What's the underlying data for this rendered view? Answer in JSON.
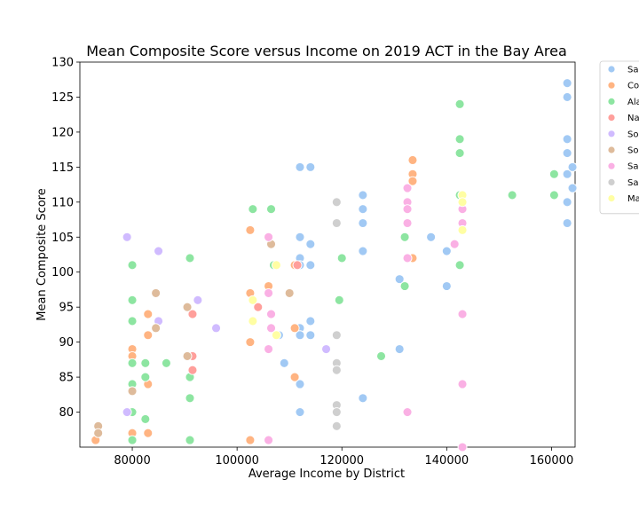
{
  "chart_data": {
    "type": "scatter",
    "title": "Mean Composite Score versus Income on 2019 ACT in the Bay Area",
    "xlabel": "Average Income by District",
    "ylabel": "Mean Composite Score",
    "xlim": [
      70000,
      164500
    ],
    "ylim": [
      75,
      130
    ],
    "xticks": [
      80000,
      100000,
      120000,
      140000,
      160000
    ],
    "yticks": [
      80,
      85,
      90,
      95,
      100,
      105,
      110,
      115,
      120,
      125,
      130
    ],
    "grid": false,
    "legend_position": "outside-right",
    "series": [
      {
        "name": "Sa",
        "color": "#a1c9f4",
        "points": [
          [
            112000,
            115
          ],
          [
            114000,
            115
          ],
          [
            112000,
            105
          ],
          [
            112000,
            102
          ],
          [
            112000,
            101
          ],
          [
            114000,
            104
          ],
          [
            114000,
            101
          ],
          [
            114000,
            93
          ],
          [
            112000,
            92
          ],
          [
            112000,
            91
          ],
          [
            114000,
            91
          ],
          [
            108000,
            91
          ],
          [
            109000,
            87
          ],
          [
            112000,
            84
          ],
          [
            112000,
            80
          ],
          [
            124000,
            111
          ],
          [
            124000,
            109
          ],
          [
            124000,
            107
          ],
          [
            124000,
            103
          ],
          [
            124000,
            82
          ],
          [
            131000,
            99
          ],
          [
            131000,
            89
          ],
          [
            137000,
            105
          ],
          [
            140000,
            103
          ],
          [
            140000,
            98
          ],
          [
            163000,
            127
          ],
          [
            163000,
            125
          ],
          [
            163000,
            119
          ],
          [
            163000,
            117
          ],
          [
            163000,
            114
          ],
          [
            164000,
            115
          ],
          [
            164000,
            112
          ],
          [
            163000,
            110
          ],
          [
            163000,
            107
          ]
        ]
      },
      {
        "name": "Co",
        "color": "#ffb482",
        "points": [
          [
            73000,
            76
          ],
          [
            80000,
            89
          ],
          [
            80000,
            88
          ],
          [
            80000,
            77
          ],
          [
            83000,
            94
          ],
          [
            83000,
            91
          ],
          [
            83000,
            84
          ],
          [
            83000,
            77
          ],
          [
            102500,
            106
          ],
          [
            102500,
            97
          ],
          [
            102500,
            90
          ],
          [
            102500,
            76
          ],
          [
            106000,
            98
          ],
          [
            111000,
            101
          ],
          [
            111000,
            92
          ],
          [
            111000,
            85
          ],
          [
            133500,
            116
          ],
          [
            133500,
            114
          ],
          [
            133500,
            113
          ],
          [
            133500,
            102
          ]
        ]
      },
      {
        "name": "Ala",
        "color": "#8de5a1",
        "points": [
          [
            80000,
            101
          ],
          [
            80000,
            96
          ],
          [
            80000,
            93
          ],
          [
            80000,
            87
          ],
          [
            80000,
            84
          ],
          [
            80000,
            80
          ],
          [
            80000,
            76
          ],
          [
            82500,
            87
          ],
          [
            82500,
            85
          ],
          [
            82500,
            79
          ],
          [
            86500,
            87
          ],
          [
            91000,
            102
          ],
          [
            91000,
            85
          ],
          [
            91000,
            82
          ],
          [
            91000,
            76
          ],
          [
            103000,
            109
          ],
          [
            106500,
            109
          ],
          [
            107000,
            101
          ],
          [
            120000,
            102
          ],
          [
            119500,
            96
          ],
          [
            127500,
            88
          ],
          [
            132000,
            105
          ],
          [
            132000,
            98
          ],
          [
            142500,
            124
          ],
          [
            142500,
            119
          ],
          [
            142500,
            117
          ],
          [
            142500,
            111
          ],
          [
            142500,
            101
          ],
          [
            152500,
            111
          ],
          [
            160500,
            114
          ],
          [
            160500,
            111
          ]
        ]
      },
      {
        "name": "Na",
        "color": "#ff9f9b",
        "points": [
          [
            91500,
            94
          ],
          [
            91500,
            88
          ],
          [
            91500,
            86
          ],
          [
            104000,
            95
          ],
          [
            111500,
            101
          ]
        ]
      },
      {
        "name": "So",
        "color": "#d0bbff",
        "points": [
          [
            79000,
            105
          ],
          [
            79000,
            80
          ],
          [
            85000,
            103
          ],
          [
            85000,
            93
          ],
          [
            92500,
            96
          ],
          [
            96000,
            92
          ],
          [
            117000,
            89
          ]
        ]
      },
      {
        "name": "So",
        "color": "#debb9b",
        "points": [
          [
            73500,
            78
          ],
          [
            73500,
            77
          ],
          [
            80000,
            83
          ],
          [
            84500,
            97
          ],
          [
            84500,
            92
          ],
          [
            90500,
            95
          ],
          [
            90500,
            88
          ],
          [
            106500,
            104
          ],
          [
            110000,
            97
          ]
        ]
      },
      {
        "name": "Sa",
        "color": "#fab0e4",
        "points": [
          [
            106000,
            105
          ],
          [
            106000,
            97
          ],
          [
            106500,
            94
          ],
          [
            106500,
            92
          ],
          [
            106000,
            89
          ],
          [
            106000,
            76
          ],
          [
            132500,
            112
          ],
          [
            132500,
            110
          ],
          [
            132500,
            109
          ],
          [
            132500,
            107
          ],
          [
            132500,
            102
          ],
          [
            132500,
            80
          ],
          [
            141500,
            104
          ],
          [
            143000,
            111
          ],
          [
            143000,
            109
          ],
          [
            143000,
            107
          ],
          [
            143000,
            94
          ],
          [
            143000,
            84
          ],
          [
            143000,
            75
          ]
        ]
      },
      {
        "name": "Sa",
        "color": "#cfcfcf",
        "points": [
          [
            119000,
            110
          ],
          [
            119000,
            107
          ],
          [
            119000,
            91
          ],
          [
            119000,
            87
          ],
          [
            119000,
            86
          ],
          [
            119000,
            81
          ],
          [
            119000,
            80
          ],
          [
            119000,
            78
          ]
        ]
      },
      {
        "name": "Ma",
        "color": "#fffea3",
        "points": [
          [
            107500,
            101
          ],
          [
            103000,
            96
          ],
          [
            103000,
            93
          ],
          [
            107500,
            91
          ],
          [
            143000,
            111
          ],
          [
            143000,
            110
          ],
          [
            143000,
            106
          ]
        ]
      }
    ]
  }
}
